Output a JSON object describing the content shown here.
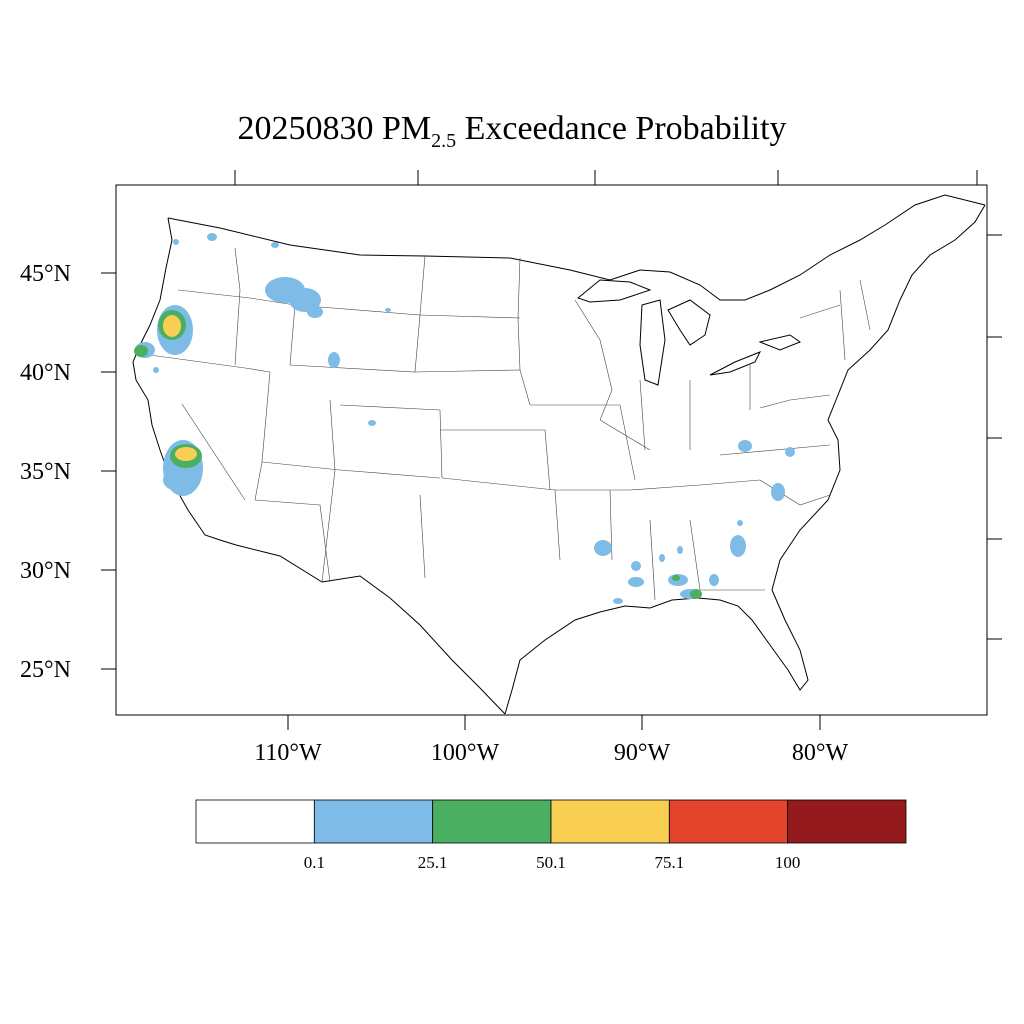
{
  "title": {
    "date": "20250830",
    "pollutant_main": "PM",
    "pollutant_sub": "2.5",
    "suffix": "Exceedance Probability"
  },
  "lat_ticks": [
    "45°N",
    "40°N",
    "35°N",
    "30°N",
    "25°N"
  ],
  "lon_ticks": [
    "110°W",
    "100°W",
    "90°W",
    "80°W"
  ],
  "colorbar": {
    "colors": [
      "#ffffff",
      "#7ebbe6",
      "#4baf62",
      "#f9cf53",
      "#e2442c",
      "#941a1d"
    ],
    "labels": [
      "0.1",
      "25.1",
      "50.1",
      "75.1",
      "100"
    ]
  },
  "chart_data": {
    "type": "map",
    "region": "Contiguous United States",
    "variable": "PM2.5 Exceedance Probability",
    "date": "20250830",
    "levels": [
      0.1,
      25.1,
      50.1,
      75.1,
      100
    ],
    "lat_range": [
      23,
      49
    ],
    "lon_range": [
      -120,
      -72
    ],
    "hotspots": [
      {
        "area": "southern Oregon",
        "max_category": "50.1-75.1"
      },
      {
        "area": "northern California coast",
        "max_category": "25.1-50.1"
      },
      {
        "area": "central California (Sierra Nevada)",
        "max_category": "50.1-75.1"
      },
      {
        "area": "central Idaho / western Montana",
        "max_category": "0.1-25.1"
      },
      {
        "area": "southwest Wyoming",
        "max_category": "0.1-25.1"
      },
      {
        "area": "southern Alabama / western Florida panhandle",
        "max_category": "25.1-50.1"
      },
      {
        "area": "Louisiana / Mississippi",
        "max_category": "0.1-25.1"
      },
      {
        "area": "Georgia / South Carolina",
        "max_category": "0.1-25.1"
      },
      {
        "area": "eastern Kentucky / Virginia",
        "max_category": "0.1-25.1"
      }
    ]
  }
}
